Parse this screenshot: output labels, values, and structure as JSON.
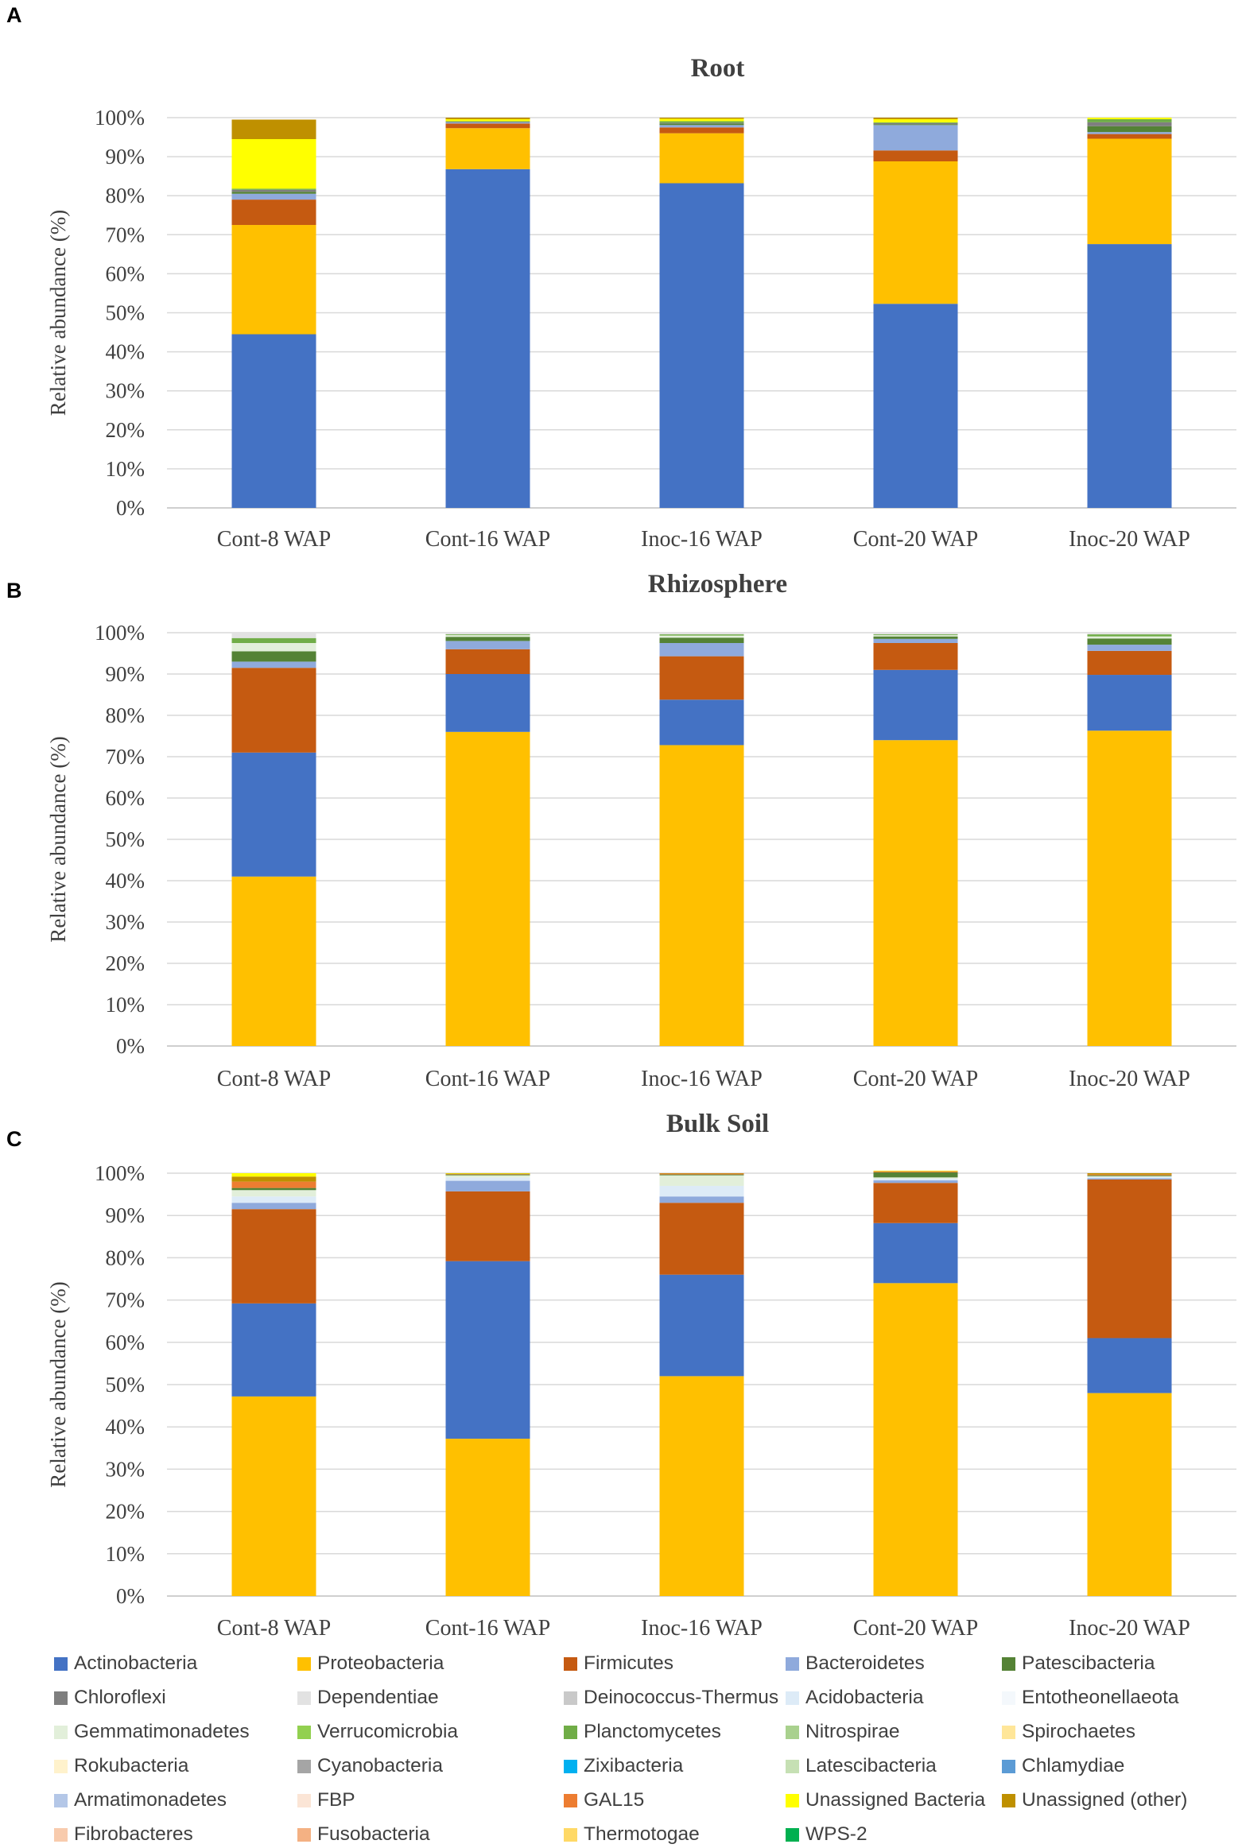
{
  "panels": [
    {
      "letter": "A"
    },
    {
      "letter": "B"
    },
    {
      "letter": "C"
    }
  ],
  "colors": {
    "Actinobacteria": "#4472c4",
    "Proteobacteria": "#ffc000",
    "Firmicutes": "#c55a11",
    "Bacteroidetes": "#8faadc",
    "Patescibacteria": "#548235",
    "Chloroflexi": "#7f7f7f",
    "Dependentiae": "#e2e2e2",
    "Deinococcus-Thermus": "#c9c9c9",
    "Acidobacteria": "#ddebf7",
    "Entotheonellaeota": "#f4f8fc",
    "Gemmatimonadetes": "#e2efda",
    "Verrucomicrobia": "#92d050",
    "Planctomycetes": "#70ad47",
    "Nitrospirae": "#a9d18e",
    "Spirochaetes": "#ffe699",
    "Rokubacteria": "#fff2cc",
    "Cyanobacteria": "#a5a5a5",
    "Zixibacteria": "#00b0f0",
    "Latescibacteria": "#c6e0b4",
    "Chlamydiae": "#5b9bd5",
    "Armatimonadetes": "#b4c7e7",
    "FBP": "#fbe5d6",
    "GAL15": "#ed7d31",
    "Unassigned Bacteria": "#ffff00",
    "Unassigned (other)": "#bf9000",
    "Fibrobacteres": "#f8cbad",
    "Fusobacteria": "#f4b183",
    "Thermotogae": "#ffd966",
    "WPS-2": "#00b050"
  },
  "legend": [
    "Actinobacteria",
    "Proteobacteria",
    "Firmicutes",
    "Bacteroidetes",
    "Patescibacteria",
    "Chloroflexi",
    "Dependentiae",
    "Deinococcus-Thermus",
    "Acidobacteria",
    "Entotheonellaeota",
    "Gemmatimonadetes",
    "Verrucomicrobia",
    "Planctomycetes",
    "Nitrospirae",
    "Spirochaetes",
    "Rokubacteria",
    "Cyanobacteria",
    "Zixibacteria",
    "Latescibacteria",
    "Chlamydiae",
    "Armatimonadetes",
    "FBP",
    "GAL15",
    "Unassigned Bacteria",
    "Unassigned (other)",
    "Fibrobacteres",
    "Fusobacteria",
    "Thermotogae",
    "WPS-2"
  ],
  "chart_data": [
    {
      "type": "bar",
      "stacked": true,
      "title": "Root",
      "ylabel": "Relative abundance (%)",
      "ylim": [
        0,
        100
      ],
      "yticks": [
        "0%",
        "10%",
        "20%",
        "30%",
        "40%",
        "50%",
        "60%",
        "70%",
        "80%",
        "90%",
        "100%"
      ],
      "categories": [
        "Cont-8 WAP",
        "Cont-16 WAP",
        "Inoc-16 WAP",
        "Cont-20 WAP",
        "Inoc-20 WAP"
      ],
      "series": [
        {
          "name": "Actinobacteria",
          "values": [
            44.5,
            86.8,
            83.2,
            52.3,
            67.6
          ]
        },
        {
          "name": "Proteobacteria",
          "values": [
            28.0,
            10.5,
            12.8,
            36.5,
            27.0
          ]
        },
        {
          "name": "Firmicutes",
          "values": [
            6.5,
            1.2,
            1.5,
            2.8,
            1.2
          ]
        },
        {
          "name": "Bacteroidetes",
          "values": [
            1.5,
            0.3,
            0.6,
            6.5,
            0.5
          ]
        },
        {
          "name": "Patescibacteria",
          "values": [
            0.5,
            0.1,
            0.4,
            0.2,
            1.5
          ]
        },
        {
          "name": "Chloroflexi",
          "values": [
            0.5,
            0.1,
            0.2,
            0.3,
            1.0
          ]
        },
        {
          "name": "Planctomycetes",
          "values": [
            0.3,
            0.1,
            0.4,
            0.2,
            0.8
          ]
        },
        {
          "name": "Unassigned Bacteria",
          "values": [
            12.7,
            0.5,
            0.6,
            0.8,
            0.4
          ]
        },
        {
          "name": "Unassigned (other)",
          "values": [
            5.0,
            0.4,
            0.3,
            0.4,
            0.0
          ]
        }
      ]
    },
    {
      "type": "bar",
      "stacked": true,
      "title": "Rhizosphere",
      "ylabel": "Relative abundance (%)",
      "ylim": [
        0,
        100
      ],
      "yticks": [
        "0%",
        "10%",
        "20%",
        "30%",
        "40%",
        "50%",
        "60%",
        "70%",
        "80%",
        "90%",
        "100%"
      ],
      "categories": [
        "Cont-8 WAP",
        "Cont-16 WAP",
        "Inoc-16 WAP",
        "Cont-20 WAP",
        "Inoc-20 WAP"
      ],
      "series": [
        {
          "name": "Proteobacteria",
          "values": [
            41.0,
            76.0,
            72.8,
            74.0,
            76.3
          ]
        },
        {
          "name": "Actinobacteria",
          "values": [
            30.0,
            14.0,
            11.0,
            17.0,
            13.5
          ]
        },
        {
          "name": "Firmicutes",
          "values": [
            20.5,
            6.0,
            10.5,
            6.5,
            5.8
          ]
        },
        {
          "name": "Bacteroidetes",
          "values": [
            1.5,
            2.0,
            3.2,
            1.0,
            1.5
          ]
        },
        {
          "name": "Patescibacteria",
          "values": [
            2.5,
            1.0,
            1.3,
            0.6,
            1.5
          ]
        },
        {
          "name": "Gemmatimonadetes",
          "values": [
            2.0,
            0.4,
            0.5,
            0.3,
            0.5
          ]
        },
        {
          "name": "Planctomycetes",
          "values": [
            1.2,
            0.2,
            0.3,
            0.2,
            0.5
          ]
        },
        {
          "name": "Dependentiae",
          "values": [
            1.3,
            0.4,
            0.4,
            0.4,
            0.4
          ]
        }
      ]
    },
    {
      "type": "bar",
      "stacked": true,
      "title": "Bulk Soil",
      "ylabel": "Relative abundance (%)",
      "ylim": [
        0,
        100
      ],
      "yticks": [
        "0%",
        "10%",
        "20%",
        "30%",
        "40%",
        "50%",
        "60%",
        "70%",
        "80%",
        "90%",
        "100%"
      ],
      "categories": [
        "Cont-8 WAP",
        "Cont-16 WAP",
        "Inoc-16 WAP",
        "Cont-20 WAP",
        "Inoc-20 WAP"
      ],
      "series": [
        {
          "name": "Proteobacteria",
          "values": [
            47.2,
            37.2,
            52.0,
            74.0,
            48.0
          ]
        },
        {
          "name": "Actinobacteria",
          "values": [
            22.0,
            42.0,
            24.0,
            14.2,
            13.0
          ]
        },
        {
          "name": "Firmicutes",
          "values": [
            22.3,
            16.5,
            17.0,
            9.5,
            37.5
          ]
        },
        {
          "name": "Bacteroidetes",
          "values": [
            1.5,
            2.5,
            1.5,
            0.6,
            0.3
          ]
        },
        {
          "name": "Acidobacteria",
          "values": [
            1.5,
            0.8,
            2.5,
            0.4,
            0.3
          ]
        },
        {
          "name": "Gemmatimonadetes",
          "values": [
            1.5,
            0.5,
            2.5,
            0.3,
            0.2
          ]
        },
        {
          "name": "Patescibacteria",
          "values": [
            0.5,
            0.2,
            0.2,
            1.2,
            0.2
          ]
        },
        {
          "name": "GAL15",
          "values": [
            1.5,
            0.1,
            0.2,
            0.2,
            0.2
          ]
        },
        {
          "name": "Unassigned (other)",
          "values": [
            1.2,
            0.1,
            0.1,
            0.1,
            0.3
          ]
        },
        {
          "name": "Unassigned Bacteria",
          "values": [
            0.8,
            0.1,
            0.0,
            0.1,
            0.0
          ]
        }
      ]
    }
  ]
}
